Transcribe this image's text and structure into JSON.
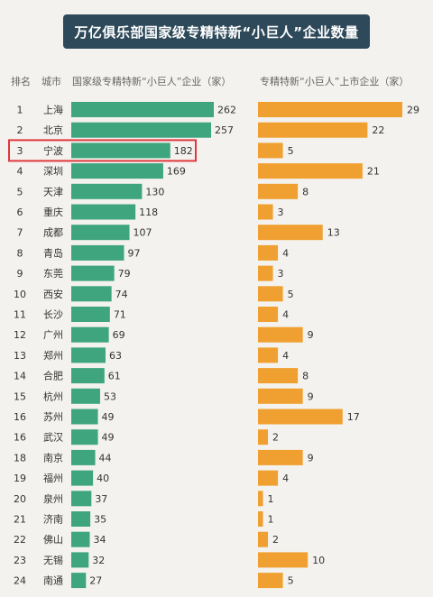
{
  "title": "万亿俱乐部国家级专精特新“小巨人”企业数量",
  "headers": {
    "rank": "排名",
    "city": "城市",
    "total": "国家级专精特新“小巨人”企业（家）",
    "listed": "专精特新“小巨人”上市企业（家）"
  },
  "highlight_index": 2,
  "colors": {
    "green": "#3ea57e",
    "orange": "#f0a030",
    "title_bg": "#2e4a5a",
    "highlight": "#e0383e"
  },
  "chart_data": [
    {
      "type": "bar",
      "orientation": "horizontal",
      "ylabel": "国家级专精特新“小巨人”企业（家）",
      "categories": [
        "上海",
        "北京",
        "宁波",
        "深圳",
        "天津",
        "重庆",
        "成都",
        "青岛",
        "东莞",
        "西安",
        "长沙",
        "广州",
        "郑州",
        "合肥",
        "杭州",
        "苏州",
        "武汉",
        "南京",
        "福州",
        "泉州",
        "济南",
        "佛山",
        "无锡",
        "南通"
      ],
      "ranks": [
        "1",
        "2",
        "3",
        "4",
        "5",
        "6",
        "7",
        "8",
        "9",
        "10",
        "11",
        "12",
        "13",
        "14",
        "15",
        "16",
        "16",
        "18",
        "19",
        "20",
        "21",
        "22",
        "23",
        "24"
      ],
      "values": [
        262,
        257,
        182,
        169,
        130,
        118,
        107,
        97,
        79,
        74,
        71,
        69,
        63,
        61,
        53,
        49,
        49,
        44,
        40,
        37,
        35,
        34,
        32,
        27
      ]
    },
    {
      "type": "bar",
      "orientation": "horizontal",
      "ylabel": "专精特新“小巨人”上市企业（家）",
      "categories": [
        "上海",
        "北京",
        "宁波",
        "深圳",
        "天津",
        "重庆",
        "成都",
        "青岛",
        "东莞",
        "西安",
        "长沙",
        "广州",
        "郑州",
        "合肥",
        "杭州",
        "苏州",
        "武汉",
        "南京",
        "福州",
        "泉州",
        "济南",
        "佛山",
        "无锡",
        "南通"
      ],
      "values": [
        29,
        22,
        5,
        21,
        8,
        3,
        13,
        4,
        3,
        5,
        4,
        9,
        4,
        8,
        9,
        17,
        2,
        9,
        4,
        1,
        1,
        2,
        10,
        5
      ]
    }
  ]
}
